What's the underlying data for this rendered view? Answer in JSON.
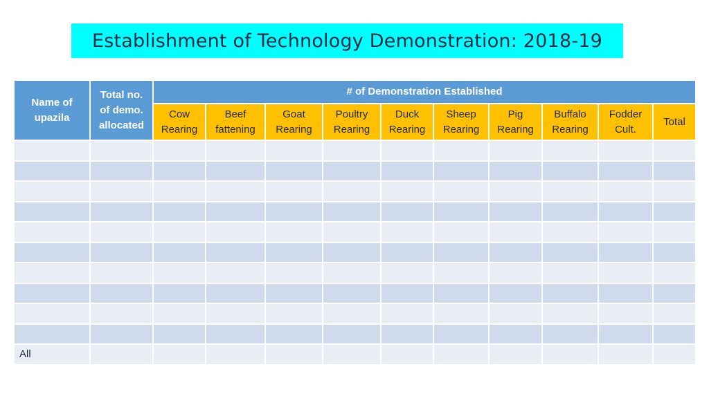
{
  "title": "Establishment of Technology Demonstration: 2018-19",
  "table": {
    "col_name": "Name of\nupazila",
    "col_total_demo": "Total no.\nof demo.\nallocated",
    "group_header": "# of Demonstration Established",
    "sub_headers": [
      "Cow\nRearing",
      "Beef\nfattening",
      "Goat\nRearing",
      "Poultry\nRearing",
      "Duck\nRearing",
      "Sheep\nRearing",
      "Pig\nRearing",
      "Buffalo\nRearing",
      "Fodder\nCult.",
      "Total"
    ],
    "rows": [
      {
        "label": ""
      },
      {
        "label": ""
      },
      {
        "label": ""
      },
      {
        "label": ""
      },
      {
        "label": ""
      },
      {
        "label": ""
      },
      {
        "label": ""
      },
      {
        "label": ""
      },
      {
        "label": ""
      },
      {
        "label": ""
      },
      {
        "label": "All"
      }
    ]
  },
  "colors": {
    "title_bg": "#00ffff",
    "header_blue": "#5b9bd5",
    "header_gold": "#ffc000",
    "row_light": "#e9edf5",
    "row_dark": "#cfdbec"
  }
}
